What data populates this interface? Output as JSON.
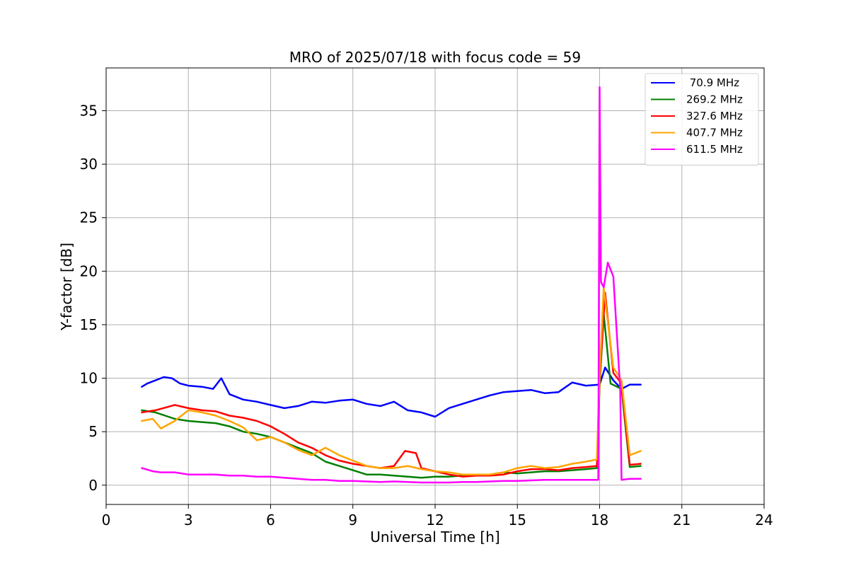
{
  "chart_data": {
    "type": "line",
    "title": "MRO of 2025/07/18 with focus code = 59",
    "xlabel": "Universal Time [h]",
    "ylabel": "Y-factor [dB]",
    "xlim": [
      0,
      24
    ],
    "ylim": [
      -1.8,
      39
    ],
    "xticks": [
      0,
      3,
      6,
      9,
      12,
      15,
      18,
      21,
      24
    ],
    "yticks": [
      0,
      5,
      10,
      15,
      20,
      25,
      30,
      35
    ],
    "grid": true,
    "legend_position": "top-right",
    "series": [
      {
        "name": " 70.9 MHz",
        "color": "#0000ff",
        "x": [
          1.3,
          1.5,
          1.8,
          2.1,
          2.4,
          2.7,
          3.0,
          3.5,
          3.9,
          4.2,
          4.5,
          5.0,
          5.5,
          6.0,
          6.5,
          7.0,
          7.5,
          8.0,
          8.5,
          9.0,
          9.5,
          10.0,
          10.5,
          11.0,
          11.5,
          12.0,
          12.5,
          13.0,
          13.5,
          14.0,
          14.5,
          15.0,
          15.5,
          16.0,
          16.5,
          17.0,
          17.5,
          18.0,
          18.2,
          18.5,
          18.8,
          19.1,
          19.5
        ],
        "y": [
          9.2,
          9.5,
          9.8,
          10.1,
          10.0,
          9.5,
          9.3,
          9.2,
          9.0,
          10.0,
          8.5,
          8.0,
          7.8,
          7.5,
          7.2,
          7.4,
          7.8,
          7.7,
          7.9,
          8.0,
          7.6,
          7.4,
          7.8,
          7.0,
          6.8,
          6.4,
          7.2,
          7.6,
          8.0,
          8.4,
          8.7,
          8.8,
          8.9,
          8.6,
          8.7,
          9.6,
          9.3,
          9.4,
          11.0,
          9.8,
          9.0,
          9.4,
          9.4
        ]
      },
      {
        "name": "269.2 MHz",
        "color": "#008000",
        "x": [
          1.3,
          1.8,
          2.5,
          3.0,
          3.5,
          4.0,
          4.5,
          5.0,
          5.5,
          6.0,
          6.5,
          7.0,
          7.5,
          8.0,
          8.5,
          9.0,
          9.5,
          10.0,
          10.5,
          11.0,
          11.5,
          12.0,
          12.5,
          13.0,
          13.5,
          14.0,
          14.5,
          15.0,
          15.5,
          16.0,
          16.5,
          17.0,
          17.5,
          17.9,
          18.0,
          18.15,
          18.4,
          18.8,
          19.1,
          19.5
        ],
        "y": [
          7.0,
          6.8,
          6.2,
          6.0,
          5.9,
          5.8,
          5.5,
          5.0,
          4.8,
          4.5,
          4.0,
          3.5,
          3.0,
          2.2,
          1.8,
          1.4,
          1.0,
          1.0,
          0.9,
          0.8,
          0.7,
          0.8,
          0.8,
          0.9,
          1.0,
          1.0,
          1.2,
          1.1,
          1.2,
          1.3,
          1.3,
          1.4,
          1.5,
          1.6,
          9.2,
          16.0,
          9.5,
          9.0,
          1.7,
          1.8
        ]
      },
      {
        "name": "327.6 MHz",
        "color": "#ff0000",
        "x": [
          1.3,
          1.8,
          2.5,
          3.0,
          3.5,
          4.0,
          4.5,
          5.0,
          5.5,
          6.0,
          6.5,
          7.0,
          7.5,
          8.0,
          8.5,
          9.0,
          9.5,
          10.0,
          10.5,
          10.9,
          11.3,
          11.5,
          12.0,
          12.5,
          13.0,
          13.5,
          14.0,
          14.5,
          15.0,
          15.5,
          16.0,
          16.5,
          17.0,
          17.5,
          17.9,
          18.0,
          18.2,
          18.5,
          18.8,
          19.1,
          19.5
        ],
        "y": [
          6.8,
          7.0,
          7.5,
          7.2,
          7.0,
          6.9,
          6.5,
          6.3,
          6.0,
          5.5,
          4.8,
          4.0,
          3.5,
          2.8,
          2.3,
          2.0,
          1.8,
          1.6,
          1.8,
          3.2,
          3.0,
          1.6,
          1.3,
          1.0,
          0.8,
          0.9,
          0.9,
          1.0,
          1.3,
          1.5,
          1.5,
          1.4,
          1.6,
          1.7,
          1.8,
          9.8,
          18.0,
          10.5,
          9.5,
          1.9,
          2.0
        ]
      },
      {
        "name": "407.7 MHz",
        "color": "#ffa500",
        "x": [
          1.3,
          1.7,
          2.0,
          2.5,
          3.0,
          3.5,
          4.0,
          4.5,
          5.0,
          5.5,
          6.0,
          6.5,
          7.0,
          7.5,
          8.0,
          8.5,
          9.0,
          9.5,
          10.0,
          10.5,
          11.0,
          11.5,
          12.0,
          12.5,
          13.0,
          13.5,
          14.0,
          14.5,
          15.0,
          15.5,
          16.0,
          16.5,
          17.0,
          17.5,
          17.9,
          18.0,
          18.15,
          18.5,
          18.8,
          19.1,
          19.5
        ],
        "y": [
          6.0,
          6.2,
          5.3,
          6.0,
          7.0,
          6.8,
          6.5,
          6.0,
          5.4,
          4.2,
          4.5,
          4.0,
          3.3,
          2.8,
          3.5,
          2.8,
          2.3,
          1.8,
          1.6,
          1.6,
          1.8,
          1.5,
          1.3,
          1.2,
          1.0,
          1.0,
          1.0,
          1.2,
          1.6,
          1.8,
          1.6,
          1.7,
          2.0,
          2.2,
          2.4,
          10.0,
          18.5,
          11.0,
          9.8,
          2.8,
          3.2
        ]
      },
      {
        "name": "611.5 MHz",
        "color": "#ff00ff",
        "x": [
          1.3,
          1.7,
          2.0,
          2.5,
          3.0,
          3.5,
          4.0,
          4.5,
          5.0,
          5.5,
          6.0,
          6.5,
          7.0,
          7.5,
          8.0,
          8.5,
          9.0,
          9.5,
          10.0,
          10.5,
          11.0,
          11.5,
          12.0,
          12.5,
          13.0,
          13.5,
          14.0,
          14.5,
          15.0,
          15.5,
          16.0,
          16.5,
          17.0,
          17.5,
          17.95,
          18.0,
          18.05,
          18.15,
          18.3,
          18.5,
          18.75,
          18.8,
          19.1,
          19.5
        ],
        "y": [
          1.6,
          1.3,
          1.2,
          1.2,
          1.0,
          1.0,
          1.0,
          0.9,
          0.9,
          0.8,
          0.8,
          0.7,
          0.6,
          0.5,
          0.5,
          0.4,
          0.4,
          0.35,
          0.3,
          0.35,
          0.3,
          0.25,
          0.25,
          0.25,
          0.3,
          0.3,
          0.35,
          0.4,
          0.4,
          0.45,
          0.5,
          0.5,
          0.5,
          0.5,
          0.5,
          37.2,
          19.0,
          18.5,
          20.8,
          19.5,
          9.0,
          0.5,
          0.6,
          0.6
        ]
      }
    ]
  }
}
